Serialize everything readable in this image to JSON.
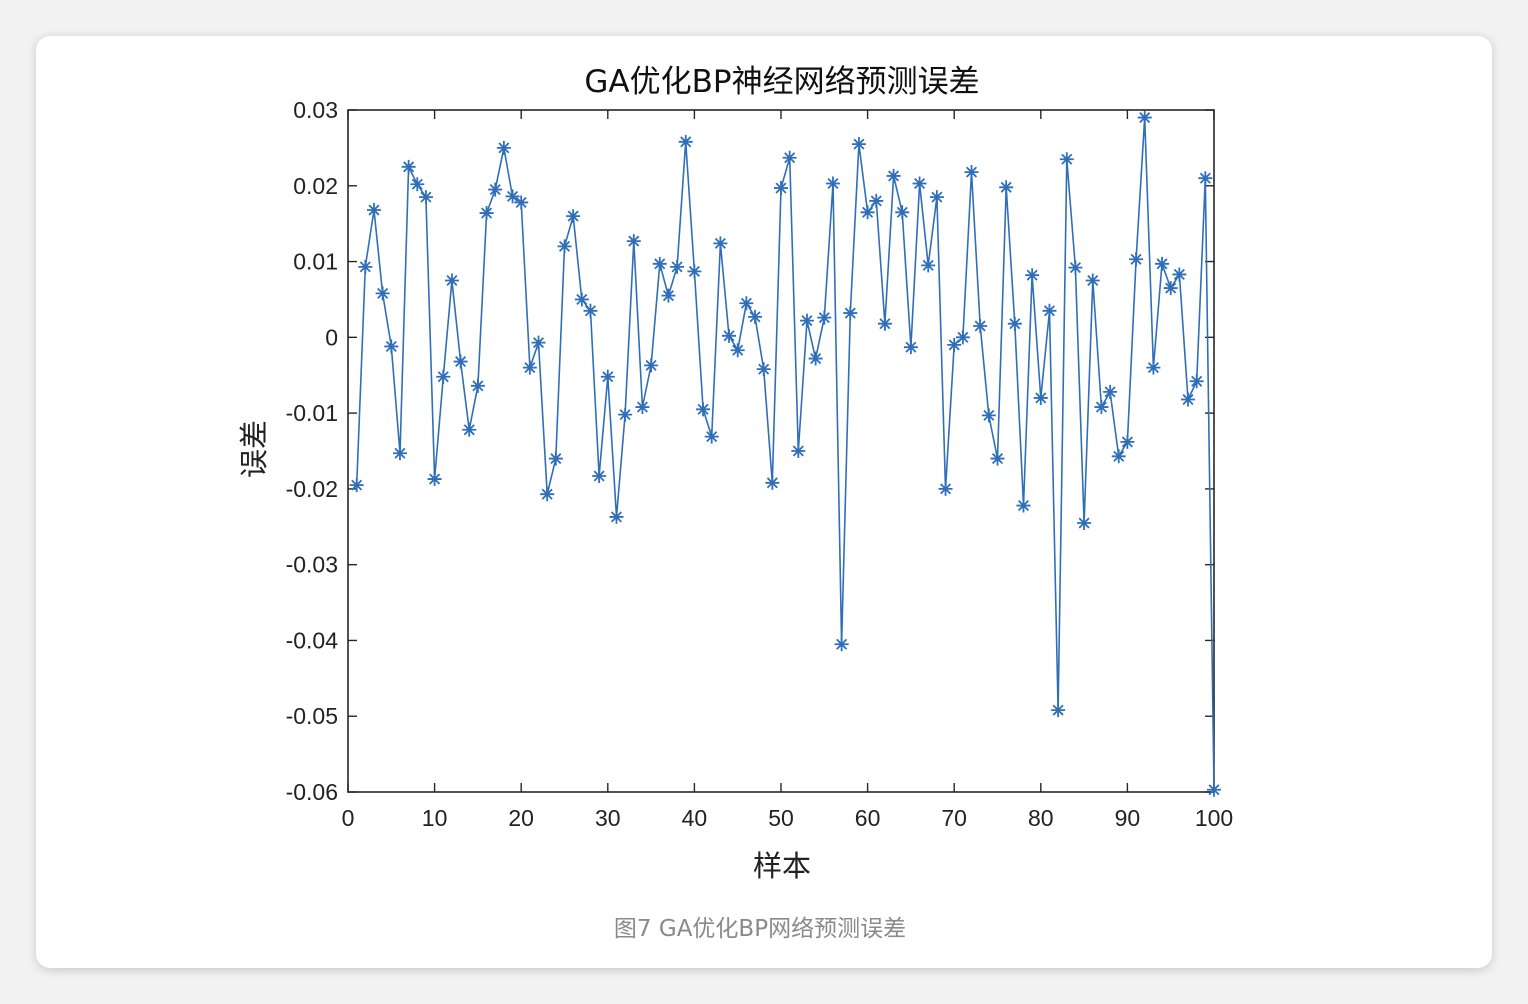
{
  "chart_data": {
    "type": "line",
    "title": "GA优化BP神经网络预测误差",
    "xlabel": "样本",
    "ylabel": "误差",
    "caption": "图7 GA优化BP网络预测误差",
    "xlim": [
      0,
      100
    ],
    "ylim": [
      -0.06,
      0.03
    ],
    "x_ticks": [
      0,
      10,
      20,
      30,
      40,
      50,
      60,
      70,
      80,
      90,
      100
    ],
    "y_ticks": [
      0.03,
      0.02,
      0.01,
      0,
      -0.01,
      -0.02,
      -0.03,
      -0.04,
      -0.05,
      -0.06
    ],
    "y_tick_labels": [
      "0.03",
      "0.02",
      "0.01",
      "0",
      "-0.01",
      "-0.02",
      "-0.03",
      "-0.04",
      "-0.05",
      "-0.06"
    ],
    "grid": false,
    "marker": "asterisk",
    "line_color": "#2f6fba",
    "series": [
      {
        "values": [
          -0.0195,
          0.0093,
          0.0168,
          0.0058,
          -0.0012,
          -0.0153,
          0.0225,
          0.0202,
          0.0185,
          -0.0187,
          -0.0052,
          0.0075,
          -0.0032,
          -0.0122,
          -0.0064,
          0.0164,
          0.0195,
          0.025,
          0.0186,
          0.0178,
          -0.004,
          -0.0007,
          -0.0207,
          -0.016,
          0.012,
          0.016,
          0.005,
          0.0035,
          -0.0183,
          -0.0052,
          -0.0237,
          -0.0102,
          0.0127,
          -0.0092,
          -0.0037,
          0.0097,
          0.0055,
          0.0093,
          0.0258,
          0.0087,
          -0.0095,
          -0.0131,
          0.0124,
          0.0002,
          -0.0017,
          0.0045,
          0.0027,
          -0.0042,
          -0.0192,
          0.0197,
          0.0237,
          -0.015,
          0.0022,
          -0.0028,
          0.0026,
          0.0203,
          -0.0405,
          0.0032,
          0.0255,
          0.0165,
          0.018,
          0.0018,
          0.0213,
          0.0165,
          -0.0013,
          0.0203,
          0.0095,
          0.0185,
          -0.02,
          -0.001,
          0.0,
          0.0218,
          0.0015,
          -0.0103,
          -0.016,
          0.0198,
          0.0018,
          -0.0222,
          0.0082,
          -0.008,
          0.0035,
          -0.0492,
          0.0235,
          0.0092,
          -0.0245,
          0.0075,
          -0.0092,
          -0.0072,
          -0.0157,
          -0.0138,
          0.0103,
          0.029,
          -0.004,
          0.0097,
          0.0065,
          0.0083,
          -0.0082,
          -0.0058,
          0.021,
          -0.0597
        ]
      }
    ]
  }
}
